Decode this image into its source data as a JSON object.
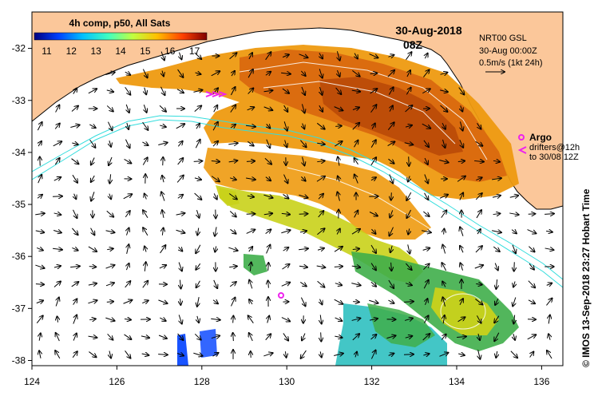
{
  "map": {
    "title": "4h comp, p50, All Sats",
    "date": "30-Aug-2018",
    "time": "08Z",
    "product": "NRT00 GSL",
    "product_time": "30-Aug 00:00Z",
    "arrow_scale": "0.5m/s (1kt 24h)",
    "argo_label": "Argo",
    "drifters_line1": "drifters@12h",
    "drifters_line2": "to 30/08 12Z",
    "credit": "© IMOS 13-Sep-2018 23:27 Hobart Time",
    "colorbar": {
      "ticks": [
        "11",
        "12",
        "13",
        "14",
        "15",
        "16",
        "17"
      ],
      "min": 10.5,
      "max": 17.5,
      "colors": [
        "#00007f",
        "#0040ff",
        "#00c0ff",
        "#40ffc0",
        "#c0ff40",
        "#ffc000",
        "#ff4000",
        "#7f0000"
      ]
    },
    "axes": {
      "x_ticks": [
        "124",
        "126",
        "128",
        "130",
        "132",
        "134",
        "136"
      ],
      "y_ticks": [
        "-32",
        "-33",
        "-34",
        "-35",
        "-36",
        "-37",
        "-38"
      ],
      "lon_range": [
        124,
        136.5
      ],
      "lat_range": [
        -38.1,
        -31.3
      ]
    },
    "colors": {
      "land": "#fbc79a",
      "warm_sst": "#d9690f",
      "mid_sst": "#ee9a10",
      "cool_sst": "#c9d21a",
      "green_sst": "#3fae4a",
      "cyan_sst": "#2fc0c0",
      "contour": "#33dddd",
      "argo": "#ee22ee"
    }
  }
}
